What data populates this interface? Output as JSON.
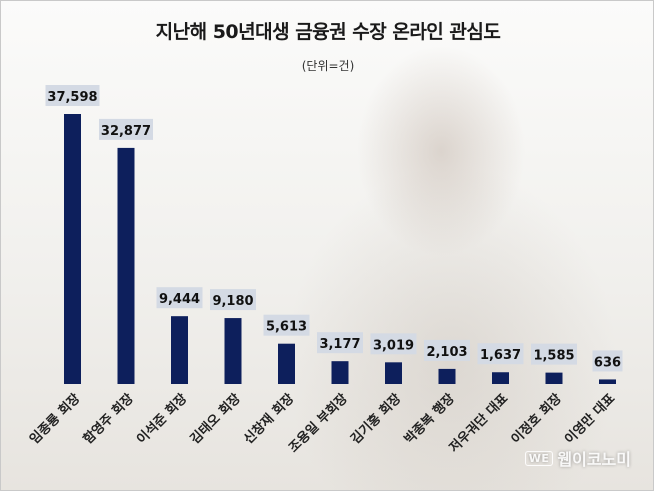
{
  "chart_data": {
    "type": "bar",
    "title": "지난해 50년대생 금융권 수장 온라인 관심도",
    "unit_note": "(단위=건)",
    "categories": [
      "임종룡 회장",
      "함영주 회장",
      "이석준 회장",
      "김태오 회장",
      "신창재 회장",
      "조용일 부회장",
      "김기홍 회장",
      "박종복 행장",
      "저우궈단 대표",
      "이정호 회장",
      "이영만 대표"
    ],
    "values": [
      37598,
      32877,
      9444,
      9180,
      5613,
      3177,
      3019,
      2103,
      1637,
      1585,
      636
    ],
    "value_labels": [
      "37,598",
      "32,877",
      "9,444",
      "9,180",
      "5,613",
      "3,177",
      "3,019",
      "2,103",
      "1,637",
      "1,585",
      "636"
    ],
    "ylim": [
      0,
      37598
    ],
    "grid": false,
    "legend": "none",
    "bar_color": "#0d1f5c",
    "label_bg_color": "#d4dae4"
  },
  "watermark": {
    "logo": "WE",
    "text": "웹이코노미"
  }
}
